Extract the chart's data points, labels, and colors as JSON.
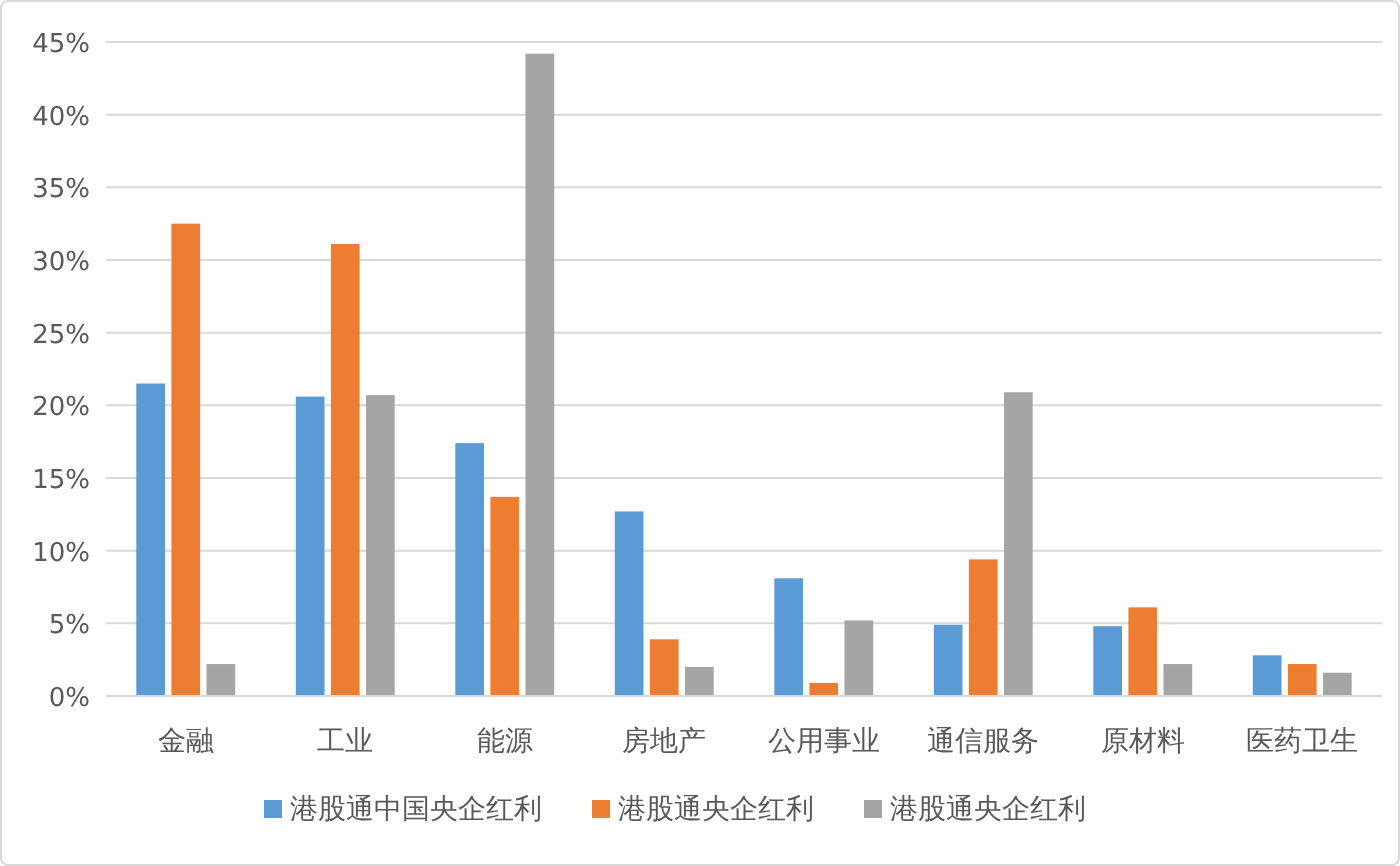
{
  "chart_data": {
    "type": "bar",
    "categories": [
      "金融",
      "工业",
      "能源",
      "房地产",
      "公用事业",
      "通信服务",
      "原材料",
      "医药卫生"
    ],
    "series": [
      {
        "name": "港股通中国央企红利",
        "color": "#5b9bd5",
        "values": [
          21.5,
          20.6,
          17.4,
          12.7,
          8.1,
          4.9,
          4.8,
          2.8
        ]
      },
      {
        "name": "港股通央企红利",
        "color": "#ed7d31",
        "values": [
          32.5,
          31.1,
          13.7,
          3.9,
          0.9,
          9.4,
          6.1,
          2.2
        ]
      },
      {
        "name": "港股通央企红利",
        "color": "#a5a5a5",
        "values": [
          2.2,
          20.7,
          44.2,
          2.0,
          5.2,
          20.9,
          2.2,
          1.6
        ]
      }
    ],
    "ylim": [
      0,
      45
    ],
    "yticks": [
      {
        "value": 0,
        "label": "0%"
      },
      {
        "value": 5,
        "label": "5%"
      },
      {
        "value": 10,
        "label": "10%"
      },
      {
        "value": 15,
        "label": "15%"
      },
      {
        "value": 20,
        "label": "20%"
      },
      {
        "value": 25,
        "label": "25%"
      },
      {
        "value": 30,
        "label": "30%"
      },
      {
        "value": 35,
        "label": "35%"
      },
      {
        "value": 40,
        "label": "40%"
      },
      {
        "value": 45,
        "label": "45%"
      }
    ],
    "grid": "y",
    "legend": "bottom"
  }
}
